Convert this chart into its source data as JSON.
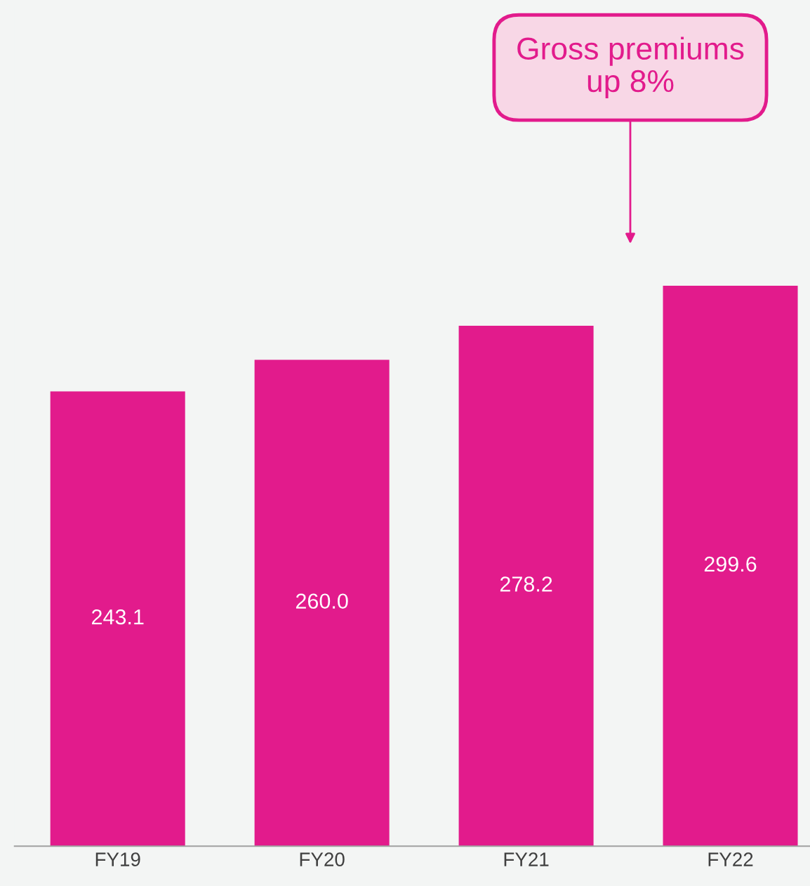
{
  "chart_data": {
    "type": "bar",
    "categories": [
      "FY19",
      "FY20",
      "FY21",
      "FY22"
    ],
    "values": [
      243.1,
      260.0,
      278.2,
      299.6
    ],
    "value_labels": [
      "243.1",
      "260.0",
      "278.2",
      "299.6"
    ],
    "color": "#e21b8c",
    "ylim": [
      0,
      450
    ],
    "grid": false,
    "legend": false,
    "annotations": [
      "Gross premiums\nup 8%"
    ]
  }
}
